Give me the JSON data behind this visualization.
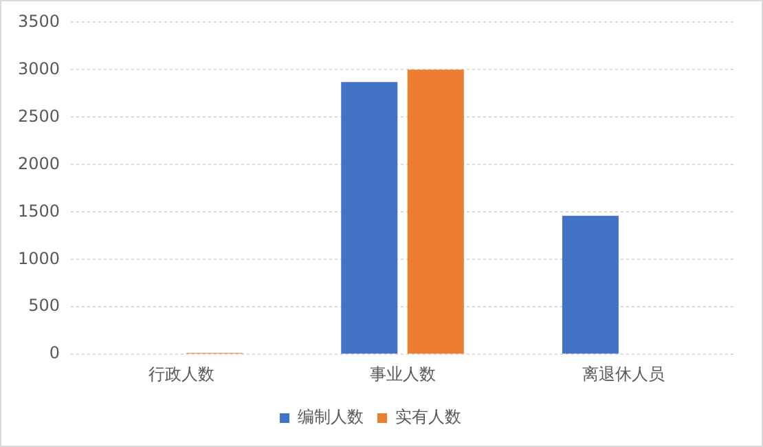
{
  "chart_data": {
    "type": "bar",
    "categories": [
      "行政人数",
      "事业人数",
      "离退休人员"
    ],
    "series": [
      {
        "name": "编制人数",
        "color": "#4472c4",
        "values": [
          0,
          2870,
          1460
        ]
      },
      {
        "name": "实有人数",
        "color": "#ed7d31",
        "values": [
          15,
          3000,
          0
        ]
      }
    ],
    "ylim": [
      0,
      3500
    ],
    "yticks": [
      0,
      500,
      1000,
      1500,
      2000,
      2500,
      3000,
      3500
    ],
    "grid": "y",
    "legend": "bottom"
  }
}
